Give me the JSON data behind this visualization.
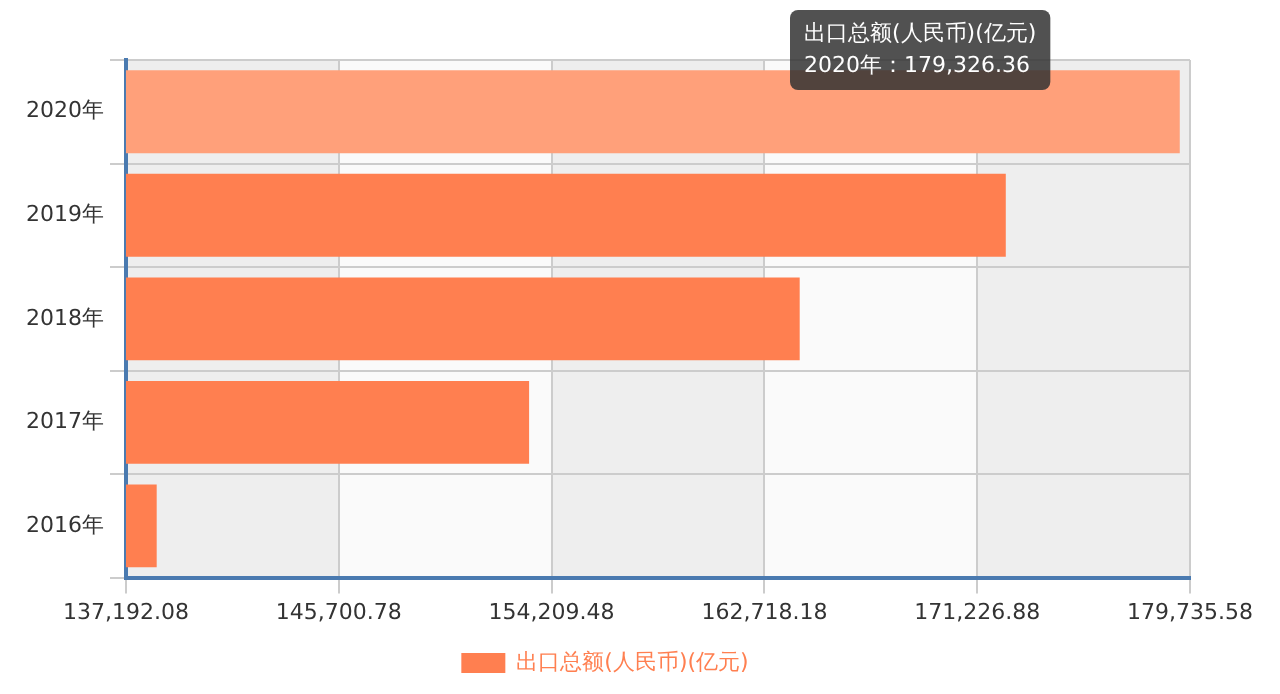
{
  "chart_data": {
    "type": "bar",
    "orientation": "horizontal",
    "categories": [
      "2020年",
      "2019年",
      "2018年",
      "2017年",
      "2016年"
    ],
    "series": [
      {
        "name": "出口总额(人民币)(亿元)",
        "color": "#ff7f50",
        "colors": [
          "#ffa07a",
          "#ff7f50",
          "#ff7f50",
          "#ff7f50",
          "#ff7f50"
        ],
        "values": [
          179326.36,
          172370,
          164130,
          153310,
          138420
        ]
      }
    ],
    "xlim": [
      137192.08,
      179735.58
    ],
    "xticks": [
      {
        "value": 137192.08,
        "label": "137,192.08"
      },
      {
        "value": 145700.78,
        "label": "145,700.78"
      },
      {
        "value": 154209.48,
        "label": "154,209.48"
      },
      {
        "value": 162718.18,
        "label": "162,718.18"
      },
      {
        "value": 171226.88,
        "label": "171,226.88"
      },
      {
        "value": 179735.58,
        "label": "179,735.58"
      }
    ],
    "grid": true,
    "legend": "bottom",
    "annotations": [
      "出口总额(人民币)(亿元)",
      "2020年：179,326.36"
    ]
  }
}
